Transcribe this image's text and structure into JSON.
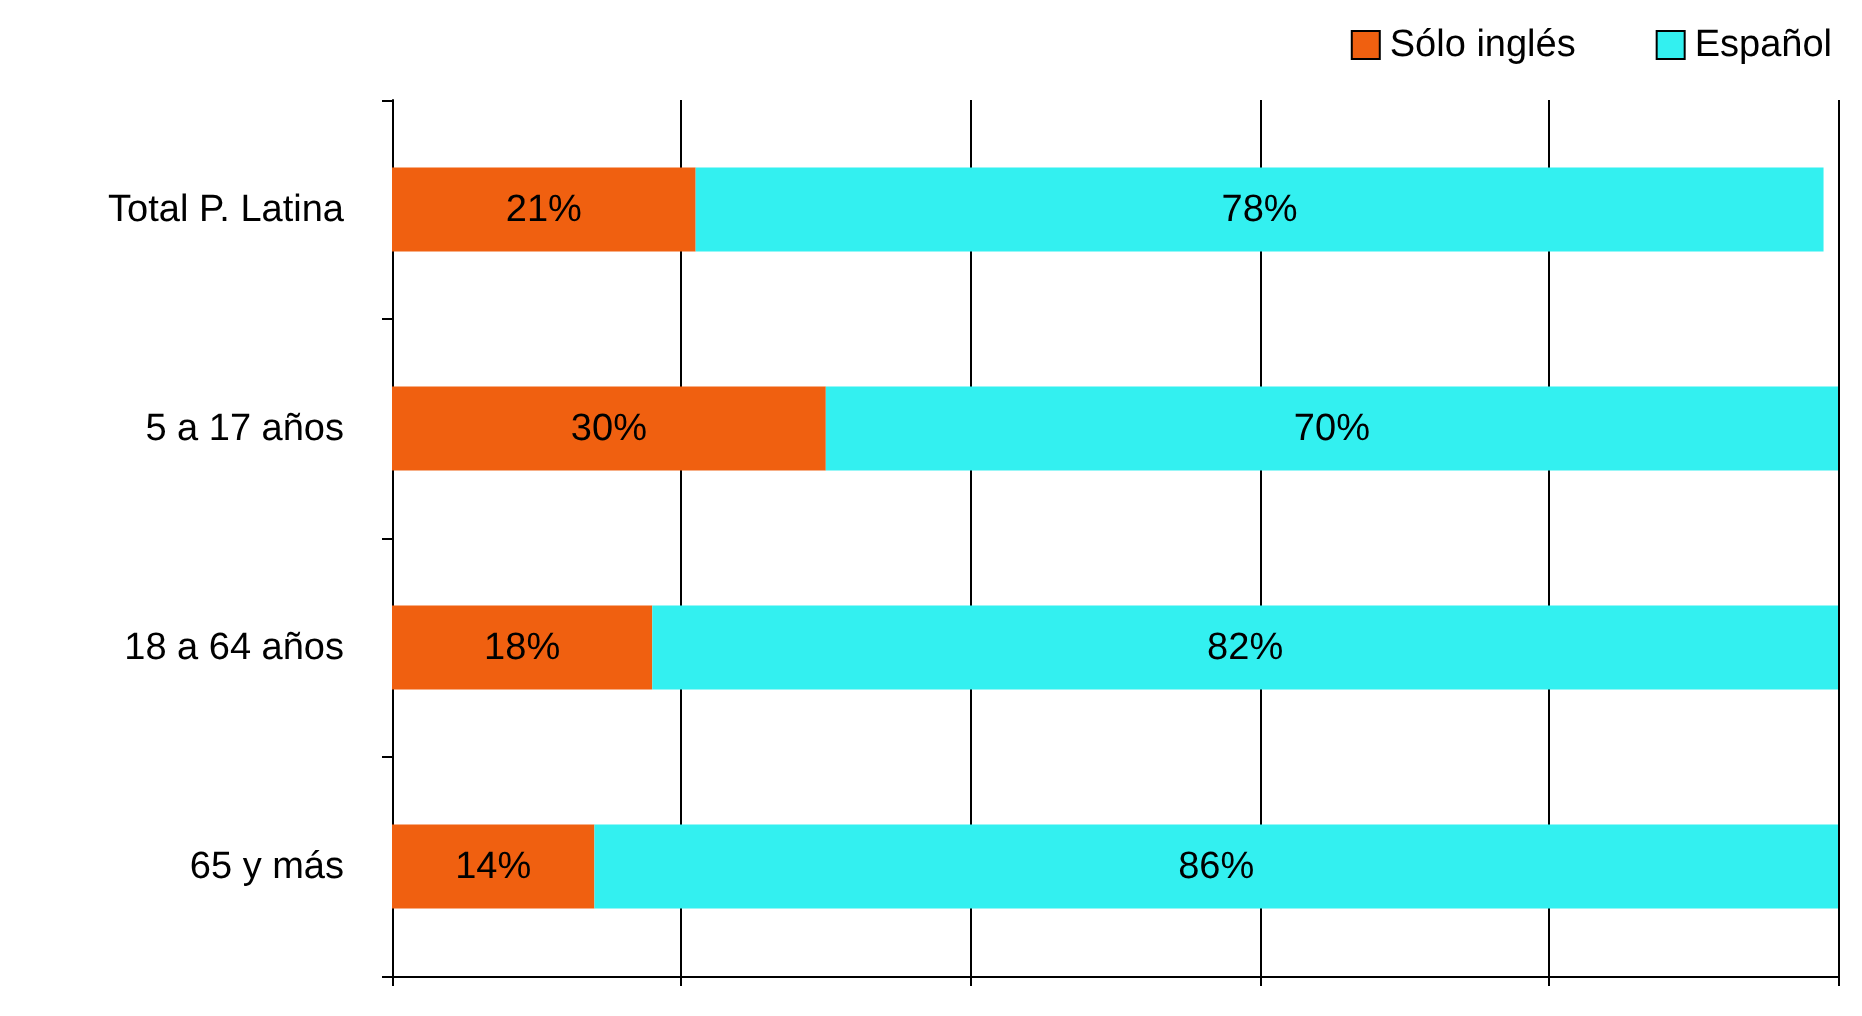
{
  "chart_data": {
    "type": "bar",
    "orientation": "horizontal",
    "stacked": true,
    "categories": [
      "Total P. Latina",
      "5 a 17 años",
      "18 a 64 años",
      "65 y más"
    ],
    "series": [
      {
        "name": "Sólo inglés",
        "color": "#f06010",
        "values": [
          21,
          30,
          18,
          14
        ],
        "value_labels": [
          "21%",
          "30%",
          "18%",
          "14%"
        ]
      },
      {
        "name": "Español",
        "color": "#33f0f0",
        "values": [
          78,
          70,
          82,
          86
        ],
        "value_labels": [
          "78%",
          "70%",
          "82%",
          "86%"
        ]
      }
    ],
    "grid": "x",
    "legend": "top right",
    "tick_labels": "y"
  }
}
